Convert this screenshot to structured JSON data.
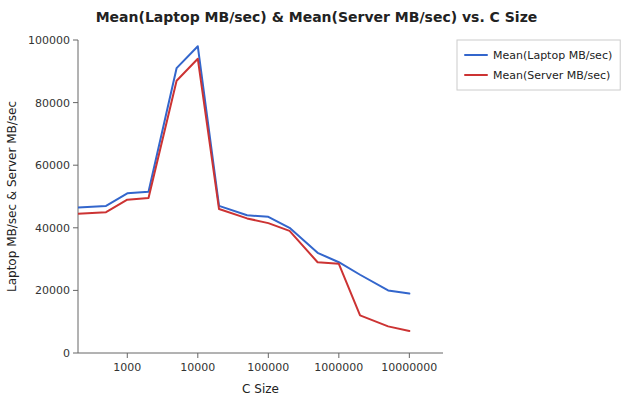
{
  "chart_data": {
    "type": "line",
    "title": "Mean(Laptop MB/sec) & Mean(Server MB/sec) vs. C Size",
    "xlabel": "C Size",
    "ylabel": "Laptop MB/sec & Server MB/sec",
    "x": [
      200,
      500,
      1000,
      2000,
      5000,
      10000,
      20000,
      50000,
      100000,
      200000,
      500000,
      1000000,
      2000000,
      5000000,
      10000000
    ],
    "series": [
      {
        "name": "Mean(Laptop MB/sec)",
        "color": "#3366cc",
        "values": [
          46500,
          47000,
          51000,
          51500,
          91000,
          98000,
          47000,
          44000,
          43500,
          40000,
          32000,
          29000,
          25000,
          20000,
          19000
        ]
      },
      {
        "name": "Mean(Server MB/sec)",
        "color": "#cc3333",
        "values": [
          44500,
          45000,
          49000,
          49500,
          87000,
          94000,
          46000,
          43000,
          41500,
          39000,
          29000,
          28500,
          12000,
          8500,
          7000
        ]
      }
    ],
    "xlim": [
      200,
      30000000
    ],
    "ylim": [
      0,
      100000
    ],
    "xticks": [
      1000,
      10000,
      100000,
      1000000,
      10000000
    ],
    "yticks": [
      0,
      20000,
      40000,
      60000,
      80000,
      100000
    ],
    "log": "x",
    "grid": false,
    "legend": "upper right"
  }
}
